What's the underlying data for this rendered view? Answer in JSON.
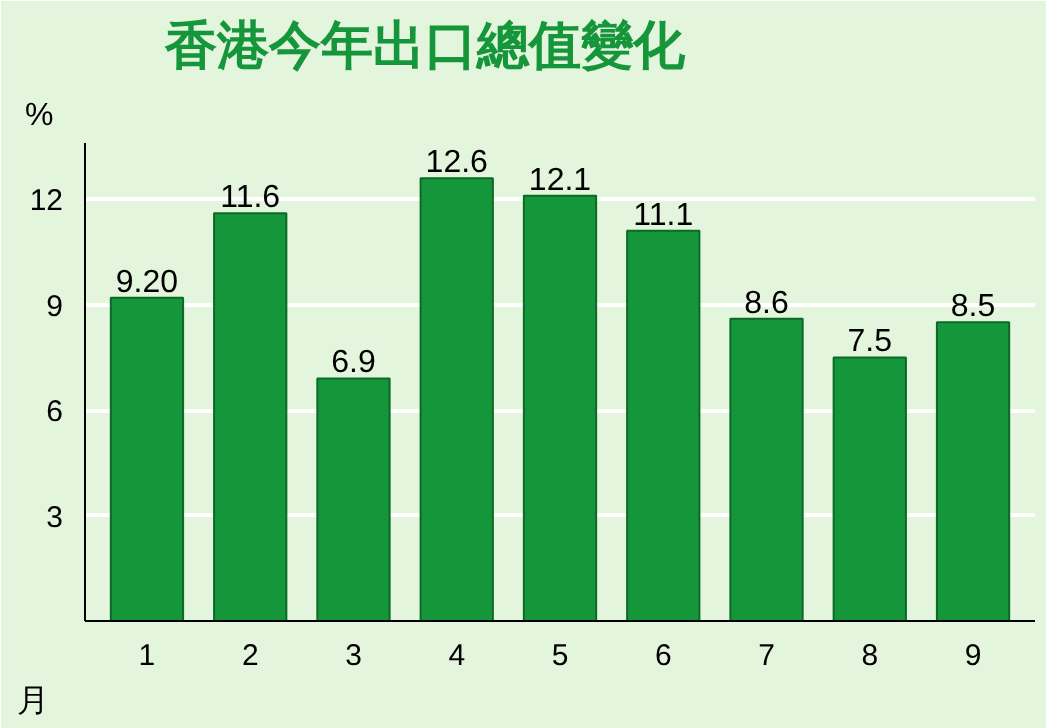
{
  "chart_data": {
    "type": "bar",
    "title": "香港今年出口總值變化",
    "xlabel": "月",
    "ylabel": "%",
    "categories": [
      "1",
      "2",
      "3",
      "4",
      "5",
      "6",
      "7",
      "8",
      "9"
    ],
    "values": [
      9.2,
      11.6,
      6.9,
      12.6,
      12.1,
      11.1,
      8.6,
      7.5,
      8.5
    ],
    "value_labels": [
      "9.20",
      "11.6",
      "6.9",
      "12.6",
      "12.1",
      "11.1",
      "8.6",
      "7.5",
      "8.5"
    ],
    "color": "#16963a",
    "ylim": [
      0,
      13.6
    ],
    "yticks": [
      3,
      6,
      9,
      12
    ],
    "grid": "y"
  }
}
